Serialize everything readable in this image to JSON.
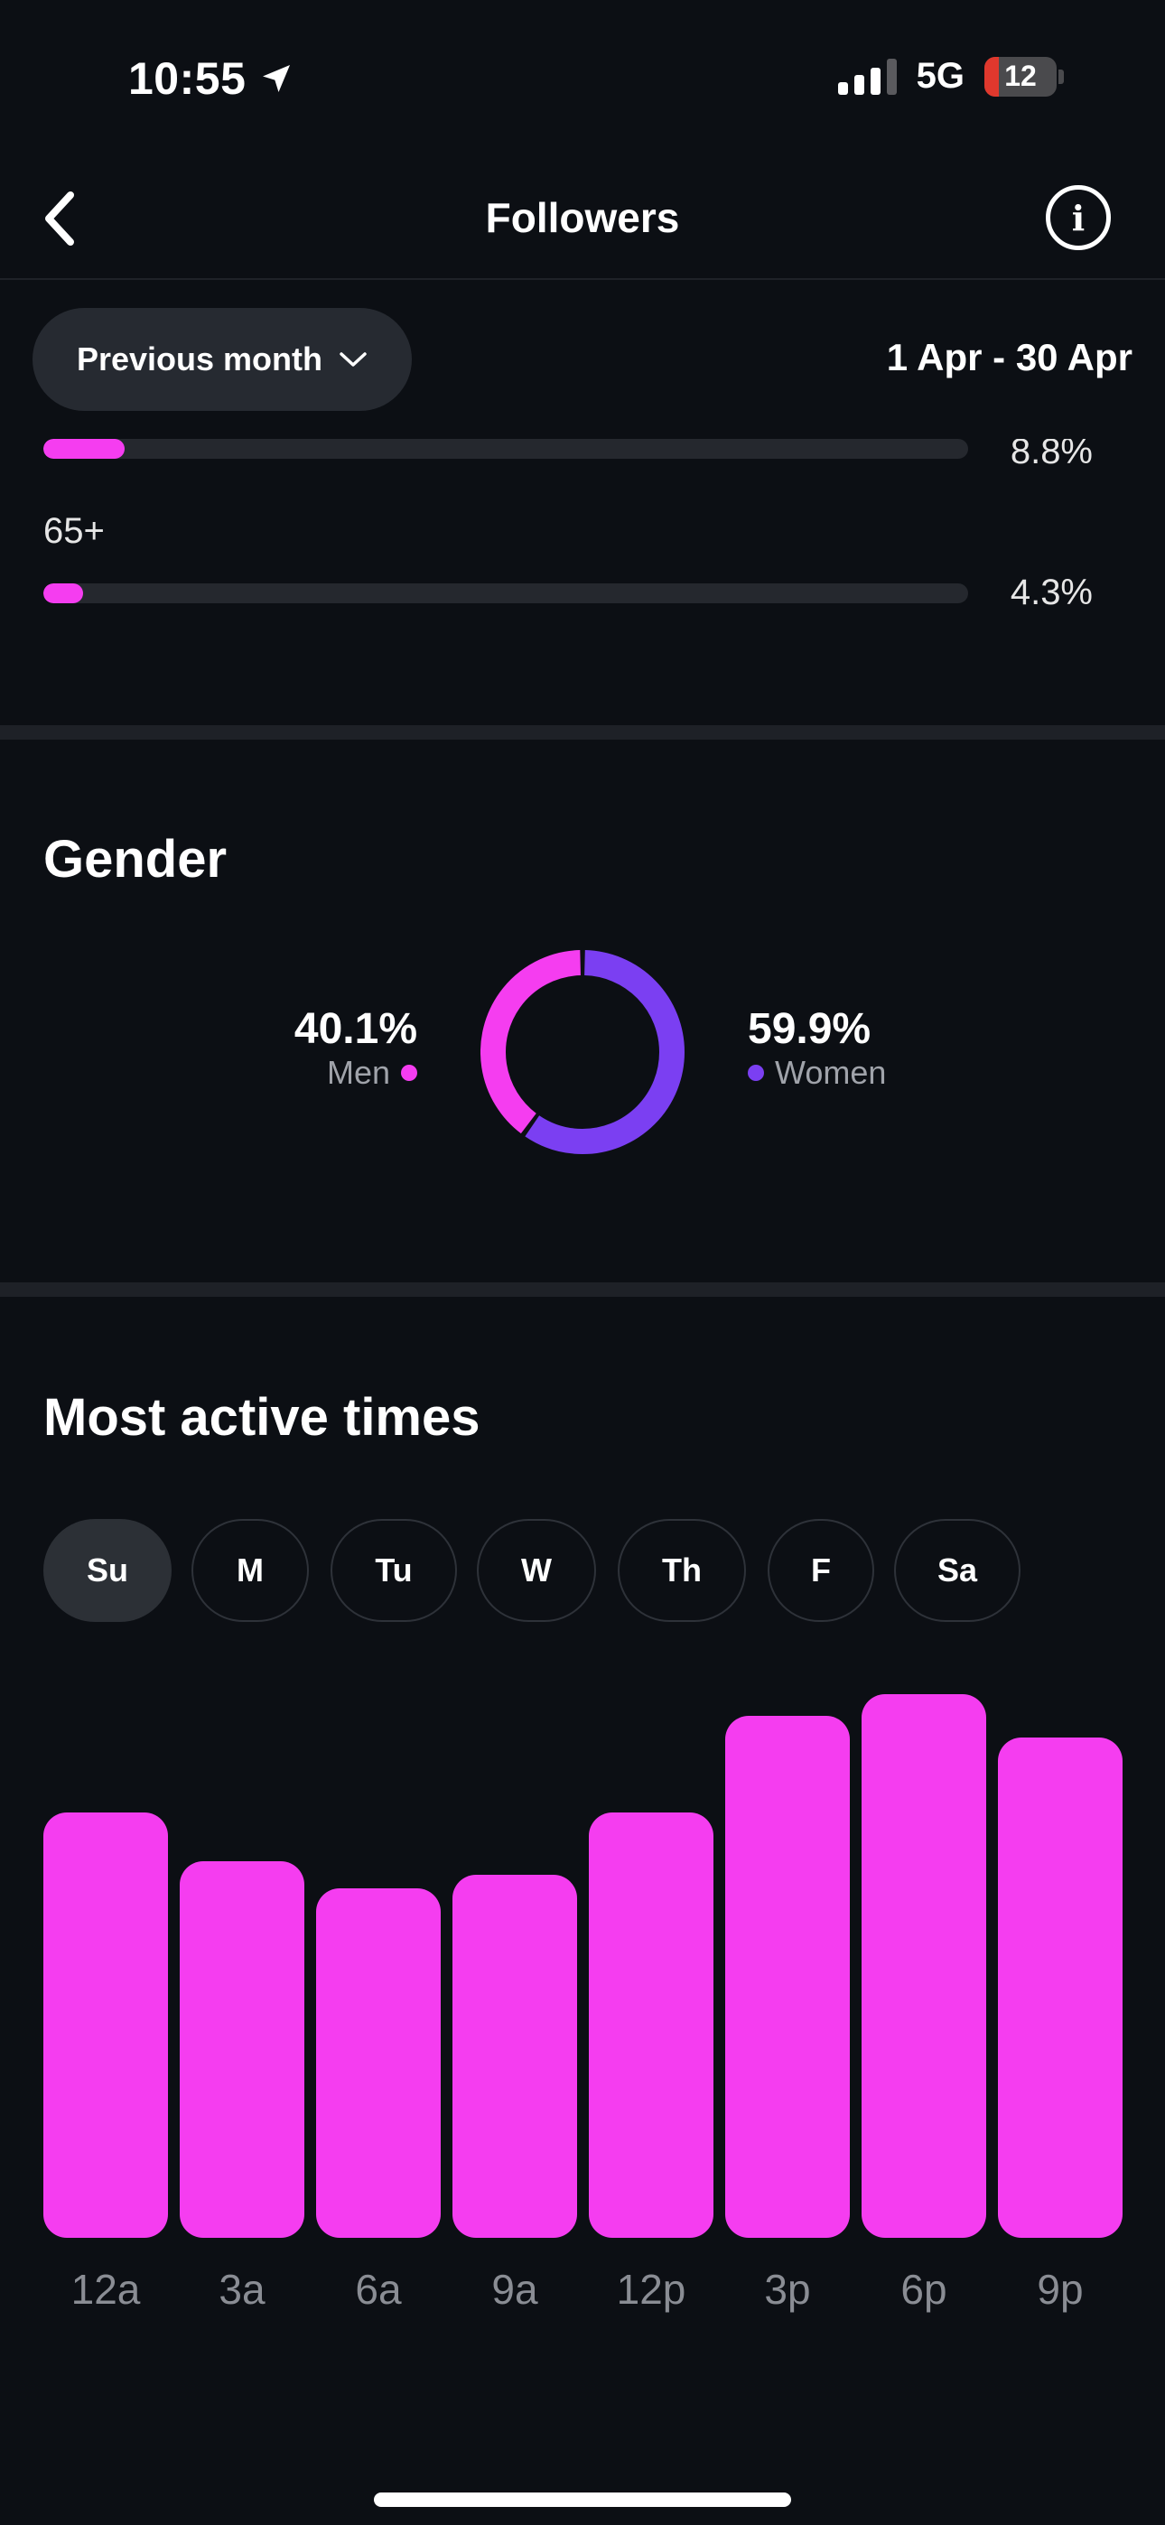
{
  "status_bar": {
    "time": "10:55",
    "network": "5G",
    "battery": "12"
  },
  "nav": {
    "title": "Followers",
    "back_icon": "chevron-left-icon",
    "info_icon": "info-icon"
  },
  "filter": {
    "period_label": "Previous month",
    "date_range": "1 Apr - 30 Apr"
  },
  "age": {
    "rows": [
      {
        "label": "",
        "percent": "8.8%",
        "fraction": 0.088
      },
      {
        "label": "65+",
        "percent": "4.3%",
        "fraction": 0.043
      }
    ]
  },
  "gender": {
    "title": "Gender",
    "men": {
      "percent": "40.1%",
      "label": "Men",
      "fraction": 0.401
    },
    "women": {
      "percent": "59.9%",
      "label": "Women",
      "fraction": 0.599
    },
    "colors": {
      "men": "#f53df0",
      "women": "#7b3ff2"
    }
  },
  "active_times": {
    "title": "Most active times",
    "days": [
      "Su",
      "M",
      "Tu",
      "W",
      "Th",
      "F",
      "Sa"
    ],
    "selected_day": "Su"
  },
  "chart_data": {
    "type": "bar",
    "categories": [
      "12a",
      "3a",
      "6a",
      "9a",
      "12p",
      "3p",
      "6p",
      "9p"
    ],
    "values": [
      79,
      70,
      65,
      67.5,
      79,
      97,
      101,
      93
    ],
    "ylim": [
      0,
      101
    ],
    "color": "#f53df0",
    "grid": false
  }
}
